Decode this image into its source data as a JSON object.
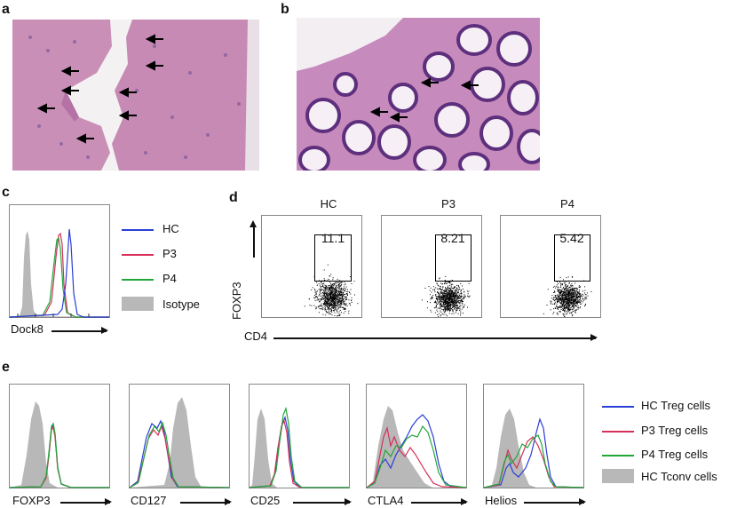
{
  "panels": {
    "a": {
      "label": "a"
    },
    "b": {
      "label": "b"
    },
    "c": {
      "label": "c",
      "xlabel": "Dock8",
      "legend": [
        {
          "name": "HC",
          "color": "#2a3fd6"
        },
        {
          "name": "P3",
          "color": "#d6305a"
        },
        {
          "name": "P4",
          "color": "#22a63a"
        },
        {
          "name": "Isotype",
          "color": "#b8b8b8"
        }
      ]
    },
    "d": {
      "label": "d",
      "ylabel": "FOXP3",
      "xlabel": "CD4",
      "plots": [
        {
          "title": "HC",
          "gate_value": "11.1"
        },
        {
          "title": "P3",
          "gate_value": "8.21"
        },
        {
          "title": "P4",
          "gate_value": "5.42"
        }
      ]
    },
    "e": {
      "label": "e",
      "markers": [
        "FOXP3",
        "CD127",
        "CD25",
        "CTLA4",
        "Helios"
      ],
      "legend": [
        {
          "name": "HC Treg cells",
          "color": "#2a3fd6"
        },
        {
          "name": "P3 Treg cells",
          "color": "#d6305a"
        },
        {
          "name": "P4 Treg cells",
          "color": "#22a63a"
        },
        {
          "name": "HC Tconv cells",
          "color": "#b8b8b8"
        }
      ]
    }
  }
}
